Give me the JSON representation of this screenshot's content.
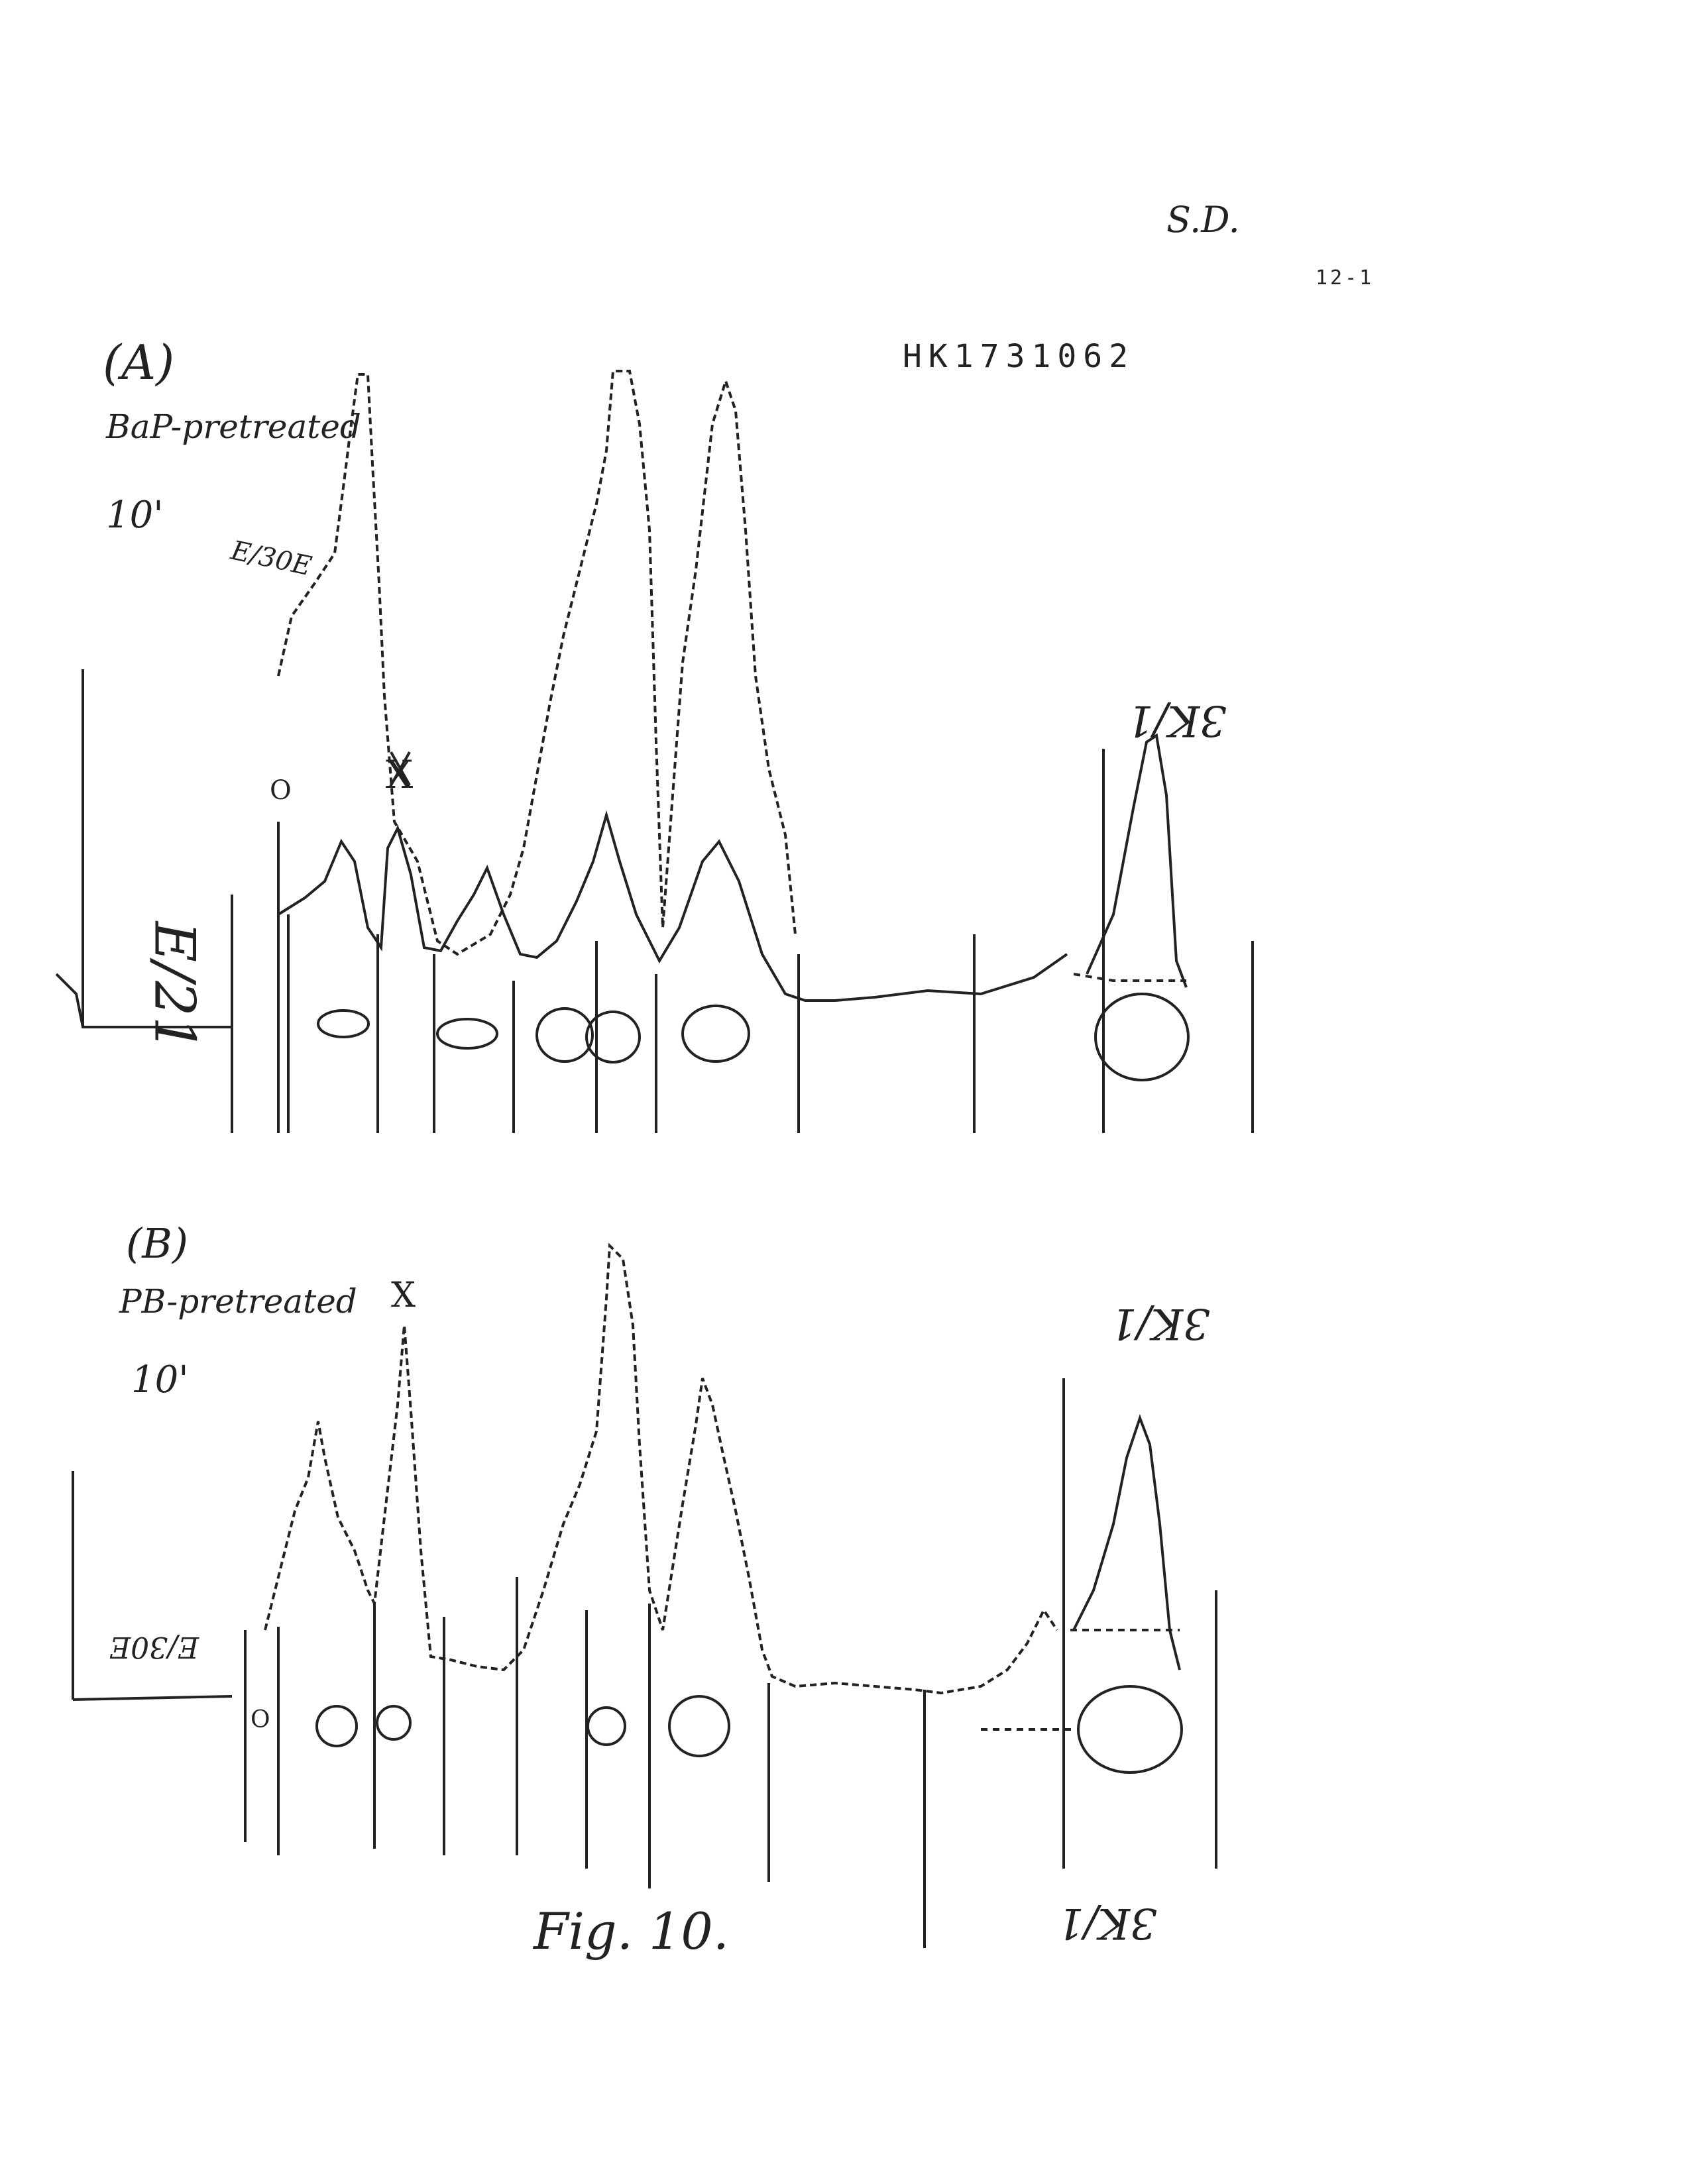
{
  "header": {
    "initials": "S.D.",
    "page_number": "12-1",
    "document_id": "HK1731062"
  },
  "panel_a": {
    "label": "(A)",
    "treatment": "BaP-pretreated",
    "time": "10'",
    "peak_label_x": "X",
    "peak_label_3k": "3K/1",
    "scale_note_left": "E/21",
    "scale_note_trace": "E/30E",
    "origin_mark": "O"
  },
  "panel_b": {
    "label": "(B)",
    "treatment": "PB-pretreated",
    "time": "10'",
    "peak_label_x": "X",
    "peak_label_3k_top": "3K/1",
    "peak_label_3k_bottom": "3K/1",
    "scale_note": "E/30E",
    "origin_mark": "O"
  },
  "caption": "Fig. 10."
}
